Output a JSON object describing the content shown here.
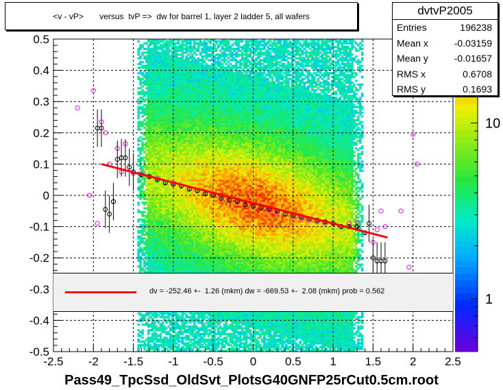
{
  "title": "<v - vP>       versus  tvP =>  dw for barrel 1, layer 2 ladder 5, all wafers",
  "x_axis_title": "Pass49_TpcSsd_OldSvt_PlotsG40GNFP25rCut0.5cm.root",
  "stats": {
    "name": "dvtvP2005",
    "rows": [
      {
        "label": "Entries",
        "value": "196238"
      },
      {
        "label": "Mean x",
        "value": "-0.03159"
      },
      {
        "label": "Mean y",
        "value": "-0.01657"
      },
      {
        "label": "RMS x",
        "value": "0.6708"
      },
      {
        "label": "RMS y",
        "value": "0.1693"
      }
    ]
  },
  "fit_text": "dv = -252.46 +-  1.26 (mkm) dw = -669.53 +-  2.08 (mkm) prob = 0.562",
  "colors": {
    "fit_line": "#ff0000",
    "profile_marker": "#000000",
    "profile_marker2": "#ff00ff"
  },
  "chart_data": {
    "type": "heatmap",
    "title": "<v - vP>       versus  tvP =>  dw for barrel 1, layer 2 ladder 5, all wafers",
    "xlabel": "Pass49_TpcSsd_OldSvt_PlotsG40GNFP25rCut0.5cm.root",
    "xlim": [
      -2.5,
      2.5
    ],
    "ylim": [
      -0.5,
      0.5
    ],
    "x_ticks": [
      "-2.5",
      "-2",
      "-1.5",
      "-1",
      "-0.5",
      "0",
      "0.5",
      "1",
      "1.5",
      "2",
      "2.5"
    ],
    "y_ticks": [
      "-0.5",
      "-0.4",
      "-0.3",
      "-0.2",
      "-0.1",
      "0",
      "0.1",
      "0.2",
      "0.3",
      "0.4",
      "0.5"
    ],
    "x_tick_values": [
      -2.5,
      -2,
      -1.5,
      -1,
      -0.5,
      0,
      0.5,
      1,
      1.5,
      2,
      2.5
    ],
    "y_tick_values": [
      -0.5,
      -0.4,
      -0.3,
      -0.2,
      -0.1,
      0,
      0.1,
      0.2,
      0.3,
      0.4,
      0.5
    ],
    "grid": true,
    "z_scale": "log",
    "z_ticks": [
      "1",
      "10"
    ],
    "z_tick_values": [
      1,
      10
    ],
    "z_range": [
      0.5,
      30
    ],
    "fit": {
      "x": [
        -1.9,
        1.68
      ],
      "y": [
        0.1,
        -0.135
      ]
    },
    "profile_black": {
      "x": [
        -1.95,
        -1.9,
        -1.85,
        -1.8,
        -1.75,
        -1.7,
        -1.65,
        -1.6,
        -1.55,
        -1.5,
        -1.4,
        -1.3,
        -1.2,
        -1.1,
        -1.0,
        -0.9,
        -0.8,
        -0.7,
        -0.6,
        -0.5,
        -0.4,
        -0.3,
        -0.2,
        -0.1,
        0.0,
        0.1,
        0.2,
        0.3,
        0.4,
        0.5,
        0.6,
        0.7,
        0.8,
        0.9,
        1.0,
        1.1,
        1.2,
        1.3,
        1.4,
        1.45,
        1.5,
        1.55,
        1.6,
        1.65
      ],
      "y": [
        0.215,
        0.215,
        -0.045,
        -0.06,
        -0.02,
        0.115,
        0.12,
        0.12,
        0.09,
        0.075,
        0.065,
        0.06,
        0.05,
        0.04,
        0.035,
        0.03,
        0.02,
        0.015,
        0.005,
        0.0,
        -0.01,
        -0.015,
        -0.02,
        -0.03,
        -0.035,
        -0.04,
        -0.045,
        -0.05,
        -0.06,
        -0.065,
        -0.07,
        -0.075,
        -0.08,
        -0.085,
        -0.09,
        -0.1,
        -0.1,
        -0.1,
        -0.12,
        -0.09,
        -0.2,
        -0.21,
        -0.21,
        -0.21
      ]
    },
    "profile_magenta": {
      "x": [
        -2.2,
        -2.05,
        -2.0,
        -1.95,
        -1.9,
        -1.85,
        -1.8,
        -1.75,
        -1.7,
        -1.65,
        -1.6,
        -1.5,
        -1.4,
        -1.3,
        -1.2,
        -1.1,
        -1.0,
        -0.9,
        -0.8,
        -0.7,
        -0.6,
        -0.5,
        -0.4,
        -0.3,
        -0.2,
        -0.1,
        0.0,
        0.1,
        0.2,
        0.3,
        0.4,
        0.5,
        0.6,
        0.7,
        0.8,
        0.9,
        1.0,
        1.1,
        1.2,
        1.3,
        1.5,
        1.55,
        1.6,
        1.65,
        1.85,
        1.95,
        2.0,
        2.05
      ],
      "y": [
        0.28,
        0.0,
        0.335,
        -0.09,
        0.235,
        0.2,
        0.1,
        -0.02,
        0.15,
        0.075,
        0.165,
        0.07,
        0.07,
        0.06,
        0.055,
        0.04,
        0.04,
        0.03,
        0.02,
        0.015,
        0.005,
        0.0,
        -0.005,
        -0.015,
        -0.02,
        -0.03,
        -0.035,
        -0.04,
        -0.05,
        -0.055,
        -0.06,
        -0.07,
        -0.075,
        -0.08,
        -0.085,
        -0.09,
        -0.09,
        -0.1,
        -0.09,
        -0.085,
        -0.15,
        -0.11,
        -0.05,
        -0.1,
        -0.05,
        -0.23,
        0.195,
        0.1
      ]
    }
  }
}
